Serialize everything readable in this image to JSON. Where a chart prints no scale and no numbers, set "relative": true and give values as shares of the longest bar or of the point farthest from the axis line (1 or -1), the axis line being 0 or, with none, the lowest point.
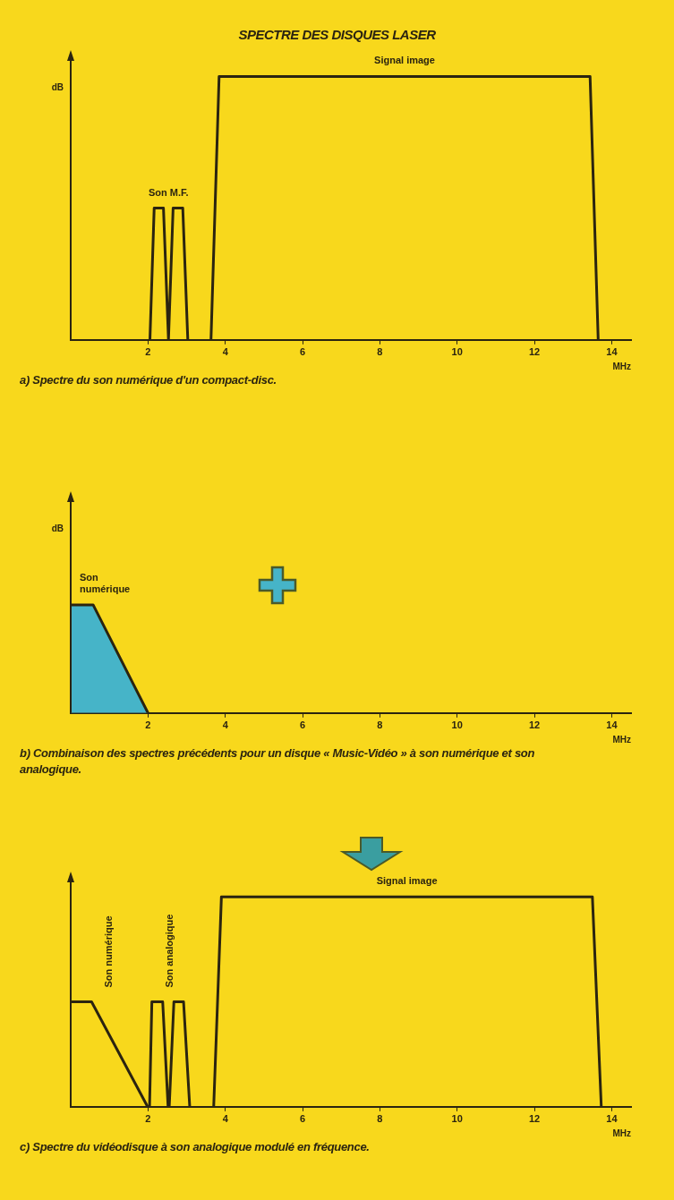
{
  "chart_data": [
    {
      "type": "line",
      "title": "SPECTRE DES DISQUES LASER",
      "ylabel": "dB",
      "xlabel": "MHz",
      "relative": true,
      "marker": "none",
      "xlim": [
        0,
        14.5
      ],
      "xticks": [
        2,
        4,
        6,
        8,
        10,
        12,
        14
      ],
      "series": [
        {
          "name": "Son M.F.",
          "color": "#2b2410",
          "x": [
            2.05,
            2.16,
            2.4,
            2.53,
            2.65,
            2.9,
            3.03
          ],
          "values": [
            0,
            0.5,
            0.5,
            0,
            0.5,
            0.5,
            0
          ]
        },
        {
          "name": "Signal image",
          "color": "#2b2410",
          "x": [
            3.63,
            3.84,
            13.44,
            13.65
          ],
          "values": [
            0,
            1,
            1,
            0
          ]
        }
      ],
      "annotations": [
        "a)  Spectre du son numérique d'un compact-disc."
      ]
    },
    {
      "type": "area",
      "ylabel": "dB",
      "xlabel": "MHz",
      "relative": true,
      "marker": "none",
      "xlim": [
        0,
        14.5
      ],
      "xticks": [
        2,
        4,
        6,
        8,
        10,
        12,
        14
      ],
      "series": [
        {
          "name": "Son numérique",
          "color": "#46b4c8",
          "x": [
            0,
            0.58,
            2
          ],
          "values": [
            1,
            1,
            0
          ]
        }
      ],
      "annotations": [
        "b)  Combinaison des spectres précédents pour un disque « Music-Vidéo » à son numérique et son analogique."
      ]
    },
    {
      "type": "line",
      "xlabel": "MHz",
      "relative": true,
      "marker": "none",
      "xlim": [
        0,
        14.5
      ],
      "xticks": [
        2,
        4,
        6,
        8,
        10,
        12,
        14
      ],
      "series": [
        {
          "name": "Son numérique",
          "color": "#2b2410",
          "x": [
            0,
            0.54,
            1.99
          ],
          "values": [
            0.5,
            0.5,
            0
          ]
        },
        {
          "name": "Son analogique",
          "color": "#2b2410",
          "x": [
            2.04,
            2.1,
            2.38,
            2.52,
            2.55,
            2.67,
            2.92,
            3.08
          ],
          "values": [
            0,
            0.5,
            0.5,
            0,
            0,
            0.5,
            0.5,
            0
          ]
        },
        {
          "name": "Signal image",
          "color": "#2b2410",
          "x": [
            3.7,
            3.9,
            13.5,
            13.73
          ],
          "values": [
            0,
            1,
            1,
            0
          ]
        }
      ],
      "annotations": [
        "c)  Spectre du vidéodisque à son analogique modulé en fréquence."
      ]
    }
  ]
}
